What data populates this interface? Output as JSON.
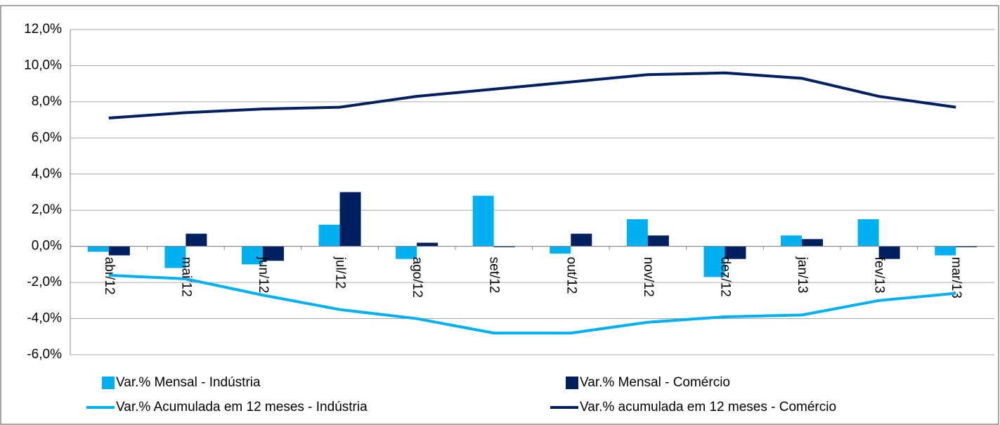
{
  "chart_data": {
    "type": "bar_line",
    "categories": [
      "abr/12",
      "mai/12",
      "jun/12",
      "jul/12",
      "ago/12",
      "set/12",
      "out/12",
      "nov/12",
      "dez/12",
      "jan/13",
      "fev/13",
      "mar/13"
    ],
    "series": [
      {
        "name": "Var.% Mensal - Indústria",
        "type": "bar",
        "color": "#00b0f0",
        "values": [
          -0.3,
          -1.2,
          -1.0,
          1.2,
          -0.7,
          2.8,
          -0.4,
          1.5,
          -1.7,
          0.6,
          1.5,
          -0.5
        ]
      },
      {
        "name": "Var.% Mensal - Comércio",
        "type": "bar",
        "color": "#002060",
        "values": [
          -0.5,
          0.7,
          -0.8,
          3.0,
          0.2,
          -0.05,
          0.7,
          0.6,
          -0.7,
          0.4,
          -0.7,
          -0.05
        ]
      },
      {
        "name": "Var.% Acumulada em 12 meses - Indústria",
        "type": "line",
        "color": "#00b0f0",
        "values": [
          -1.6,
          -1.8,
          -2.7,
          -3.5,
          -4.0,
          -4.8,
          -4.8,
          -4.2,
          -3.9,
          -3.8,
          -3.0,
          -2.6
        ]
      },
      {
        "name": "Var.% acumulada em 12 meses - Comércio",
        "type": "line",
        "color": "#002060",
        "values": [
          7.1,
          7.4,
          7.6,
          7.7,
          8.3,
          8.7,
          9.1,
          9.5,
          9.6,
          9.3,
          8.3,
          7.7
        ]
      }
    ],
    "ylim": [
      -6,
      12
    ],
    "yticks": [
      {
        "value": -6,
        "label": "-6,0%"
      },
      {
        "value": -4,
        "label": "-4,0%"
      },
      {
        "value": -2,
        "label": "-2,0%"
      },
      {
        "value": 0,
        "label": "0,0%"
      },
      {
        "value": 2,
        "label": "2,0%"
      },
      {
        "value": 4,
        "label": "4,0%"
      },
      {
        "value": 6,
        "label": "6,0%"
      },
      {
        "value": 8,
        "label": "8,0%"
      },
      {
        "value": 10,
        "label": "10,0%"
      },
      {
        "value": 12,
        "label": "12,0%"
      }
    ],
    "grid": true
  }
}
